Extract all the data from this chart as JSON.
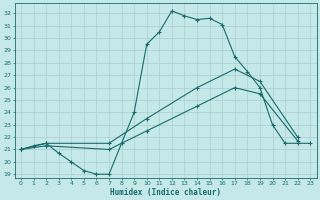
{
  "bg_color": "#c5e8e8",
  "line_color": "#1a6b6b",
  "grid_color": "#aacfcf",
  "xlabel": "Humidex (Indice chaleur)",
  "xlim": [
    -0.5,
    23.5
  ],
  "ylim": [
    18.7,
    32.8
  ],
  "yticks": [
    19,
    20,
    21,
    22,
    23,
    24,
    25,
    26,
    27,
    28,
    29,
    30,
    31,
    32
  ],
  "xticks": [
    0,
    1,
    2,
    3,
    4,
    5,
    6,
    7,
    8,
    9,
    10,
    11,
    12,
    13,
    14,
    15,
    16,
    17,
    18,
    19,
    20,
    21,
    22,
    23
  ],
  "line1_x": [
    0,
    1,
    2,
    3,
    4,
    5,
    6,
    7,
    8,
    9,
    10,
    11,
    12,
    13,
    14,
    15,
    16,
    17,
    18,
    19,
    20,
    21,
    22,
    23
  ],
  "line1_y": [
    21.0,
    21.3,
    21.5,
    20.7,
    20.0,
    19.3,
    19.0,
    19.0,
    21.5,
    24.0,
    29.5,
    30.5,
    32.2,
    31.8,
    31.5,
    31.6,
    31.1,
    28.5,
    27.3,
    26.0,
    23.0,
    21.5,
    21.5,
    21.5
  ],
  "line2_x": [
    0,
    2,
    7,
    10,
    14,
    17,
    19,
    22
  ],
  "line2_y": [
    21.0,
    21.5,
    21.5,
    23.5,
    26.0,
    27.5,
    26.5,
    22.0
  ],
  "line3_x": [
    0,
    2,
    7,
    10,
    14,
    17,
    19,
    22
  ],
  "line3_y": [
    21.0,
    21.3,
    21.0,
    22.5,
    24.5,
    26.0,
    25.5,
    21.7
  ]
}
